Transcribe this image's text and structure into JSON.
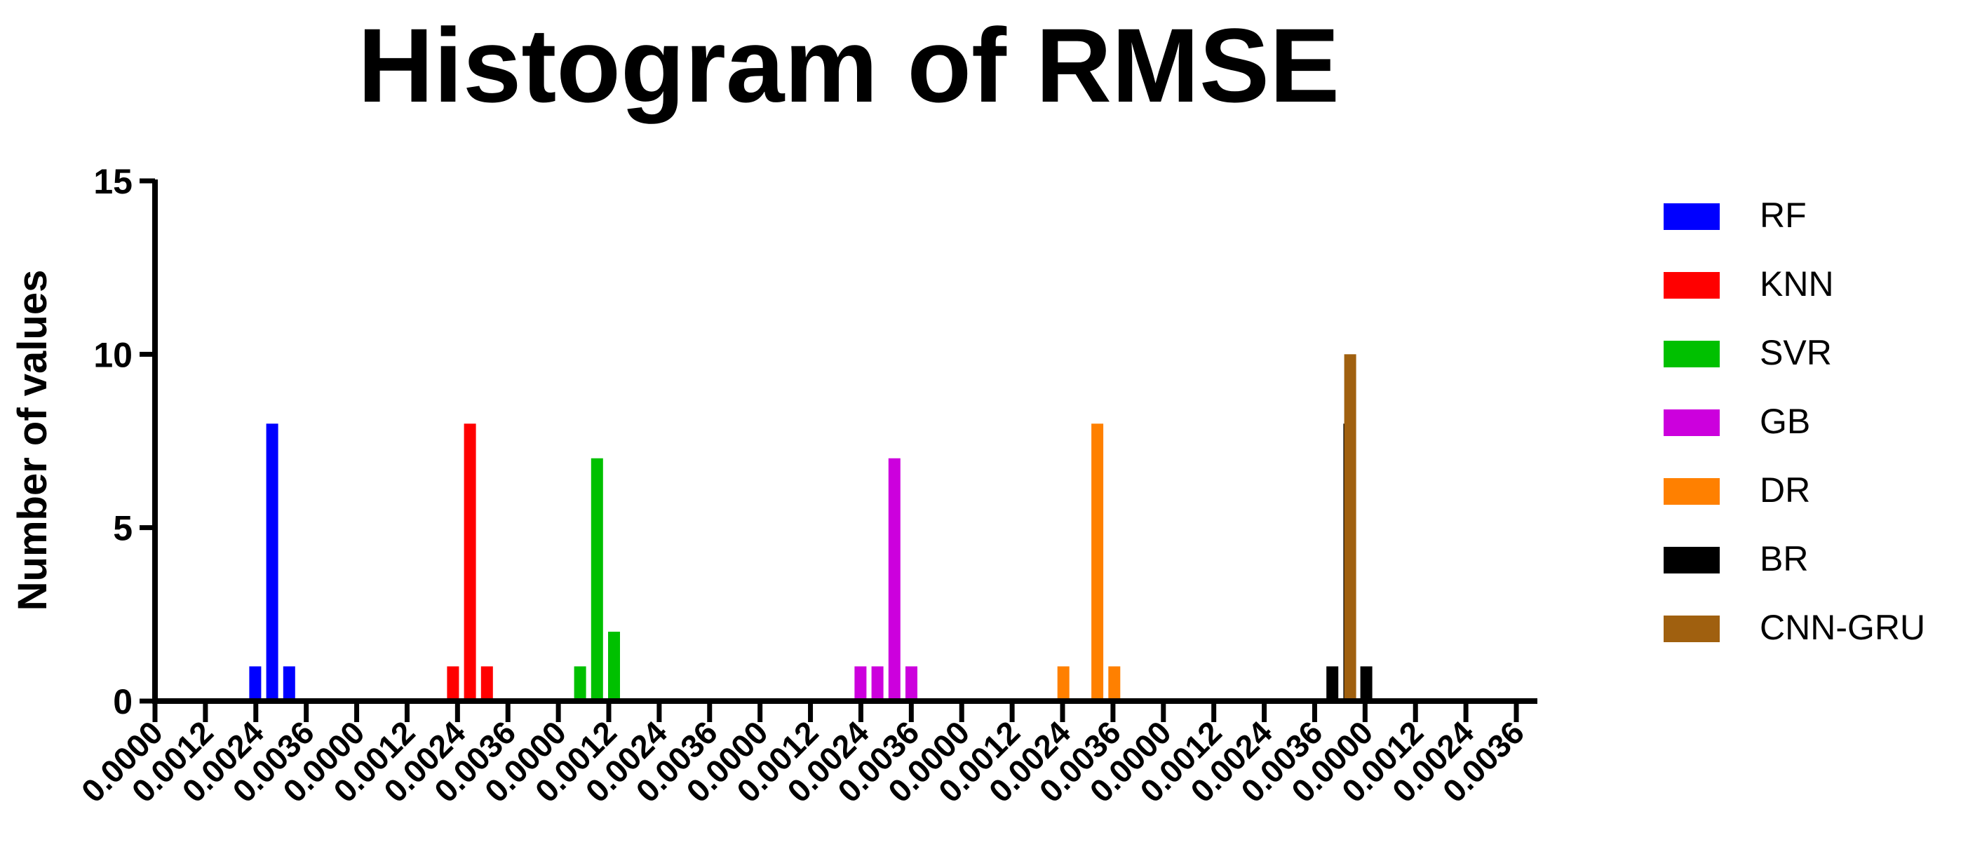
{
  "chart_data": {
    "type": "bar",
    "title": "Histogram of RMSE",
    "xlabel": "",
    "ylabel": "Number of values",
    "ylim": [
      0,
      15
    ],
    "y_ticks": [
      "0",
      "5",
      "10",
      "15"
    ],
    "bin_labels": [
      "0.0000",
      "0.0012",
      "0.0024",
      "0.0036"
    ],
    "groups": 7,
    "legend_position": "right",
    "grid": false,
    "series": [
      {
        "name": "RF",
        "color": "#0000FF",
        "bins": [
          0.0018,
          0.0022,
          0.0026
        ],
        "counts": [
          1,
          8,
          1
        ]
      },
      {
        "name": "KNN",
        "color": "#FF0000",
        "bins": [
          0.0018,
          0.0022,
          0.0026
        ],
        "counts": [
          1,
          8,
          1
        ]
      },
      {
        "name": "SVR",
        "color": "#00C000",
        "bins": [
          0.0002,
          0.0006,
          0.001
        ],
        "counts": [
          1,
          7,
          2
        ]
      },
      {
        "name": "GB",
        "color": "#CC00DD",
        "bins": [
          0.0018,
          0.0022,
          0.0026,
          0.003
        ],
        "counts": [
          1,
          1,
          7,
          1
        ]
      },
      {
        "name": "DR",
        "color": "#FF8000",
        "bins": [
          0.0024,
          0.0032,
          0.0036
        ],
        "counts": [
          1,
          8,
          1
        ]
      },
      {
        "name": "BR",
        "color": "#000000",
        "bins": [
          0.0034,
          0.0038,
          0.0042
        ],
        "counts": [
          1,
          8,
          1
        ]
      },
      {
        "name": "CNN-GRU",
        "color": "#A0600F",
        "bins": [
          0.0002
        ],
        "counts": [
          10
        ]
      }
    ]
  }
}
